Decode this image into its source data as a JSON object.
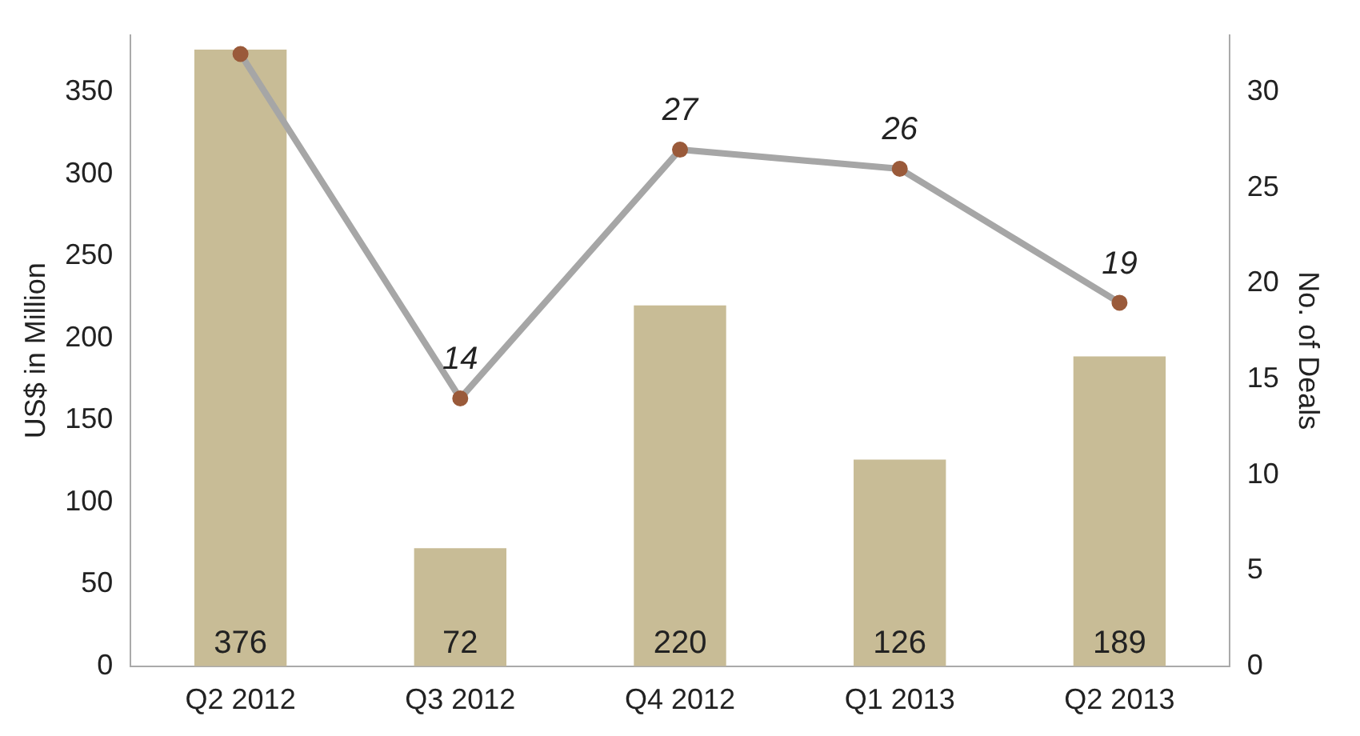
{
  "chart_data": {
    "type": "bar",
    "categories": [
      "Q2 2012",
      "Q3 2012",
      "Q4 2012",
      "Q1 2013",
      "Q2 2013"
    ],
    "ylabel": "US$ in Million",
    "y2label": "No. of Deals",
    "series": [
      {
        "color": "#c8bc96",
        "values": [
          376,
          72,
          220,
          126,
          189
        ],
        "data_labels": true
      },
      {
        "type": "line",
        "axis": "y2",
        "color": "#a6a6a6",
        "values": [
          32,
          14,
          27,
          26,
          19
        ],
        "value_labels": [
          null,
          "14",
          "27",
          "26",
          "19"
        ]
      }
    ],
    "ylim": [
      0,
      385
    ],
    "yticks": [
      0,
      50,
      100,
      150,
      200,
      250,
      300,
      350
    ],
    "y2lim": [
      0,
      33
    ],
    "y2ticks": [
      0,
      5,
      10,
      15,
      20,
      25,
      30
    ],
    "grid": false,
    "legend": false,
    "marker": "circle"
  }
}
